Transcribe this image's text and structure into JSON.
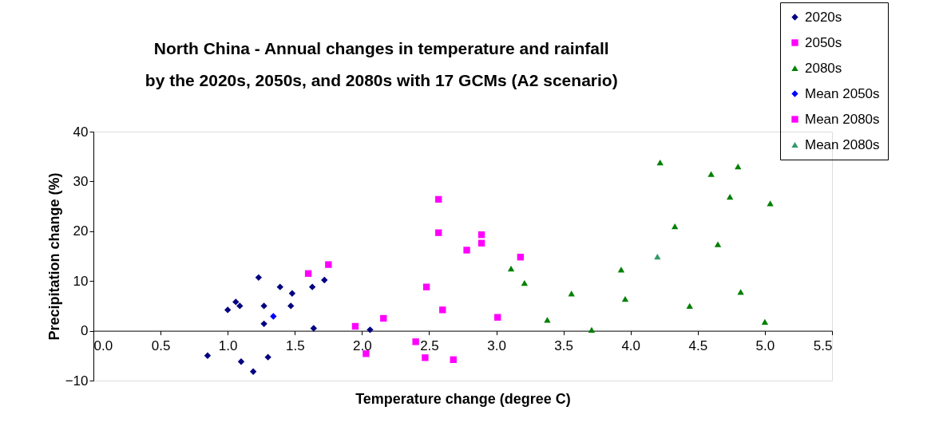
{
  "chart_data": {
    "type": "scatter",
    "title": "North China - Annual changes in temperature and rainfall by the 2020s, 2050s, and 2080s with 17 GCMs (A2 scenario)",
    "xlabel": "Temperature change (degree C)",
    "ylabel": "Precipitation change (%)",
    "xlim": [
      0,
      5.5
    ],
    "xticks": [
      {
        "value": 0,
        "label": "0.0"
      },
      0.5,
      {
        "value": 1,
        "label": "1.0"
      },
      1.5,
      {
        "value": 2,
        "label": "2.0"
      },
      2.5,
      {
        "value": 3,
        "label": "3.0"
      },
      3.5,
      {
        "value": 4,
        "label": "4.0"
      },
      4.5,
      {
        "value": 5,
        "label": "5.0"
      },
      5.5
    ],
    "ylim": [
      -10,
      40
    ],
    "yticks": [
      -10,
      0,
      10,
      20,
      30,
      40
    ],
    "grid": false,
    "legend": "top right",
    "series": [
      {
        "name": "2020s",
        "color": "#000080",
        "marker": "diamond",
        "x": [
          1.0,
          1.06,
          1.09,
          1.23,
          1.27,
          1.27,
          1.39,
          1.48,
          1.47,
          1.63,
          1.72,
          1.64,
          2.06,
          0.85,
          1.1,
          1.19,
          1.3
        ],
        "values": [
          4.2,
          5.8,
          5.0,
          10.7,
          5.0,
          1.4,
          8.8,
          7.5,
          5.0,
          8.8,
          10.2,
          0.5,
          0.2,
          -5.0,
          -6.2,
          -8.2,
          -5.3
        ]
      },
      {
        "name": "2050s",
        "color": "#ff00ff",
        "marker": "square",
        "x": [
          1.6,
          1.75,
          1.95,
          2.03,
          2.16,
          2.4,
          2.47,
          2.57,
          2.57,
          2.6,
          2.68,
          2.78,
          2.89,
          2.89,
          3.01,
          3.18
        ],
        "values": [
          11.5,
          13.3,
          0.9,
          -4.6,
          2.5,
          -2.2,
          -5.4,
          26.4,
          19.7,
          4.2,
          -5.8,
          16.2,
          19.3,
          17.6,
          2.7,
          14.8
        ]
      },
      {
        "name": "2080s",
        "color": "#008000",
        "marker": "triangle",
        "x": [
          4.22,
          4.6,
          4.8,
          4.74,
          5.04,
          4.33,
          4.65,
          3.93,
          3.96,
          3.56,
          3.38,
          3.71,
          4.44,
          4.82,
          5.0,
          3.11,
          3.21
        ],
        "values": [
          33.8,
          31.5,
          33.0,
          26.9,
          25.6,
          21.0,
          17.4,
          12.3,
          6.4,
          7.5,
          2.2,
          0.2,
          5.0,
          7.8,
          1.8,
          12.5,
          9.6
        ]
      },
      {
        "name": "Mean 2050s",
        "color": "#0000ff",
        "marker": "diamond",
        "x": [
          1.34
        ],
        "values": [
          2.9
        ]
      },
      {
        "name": "Mean 2080s",
        "color": "#ff00ff",
        "marker": "square",
        "x": [
          2.48
        ],
        "values": [
          8.8
        ]
      },
      {
        "name": "Mean 2080s",
        "color": "#339966",
        "marker": "triangle",
        "x": [
          4.2
        ],
        "values": [
          14.9
        ]
      }
    ]
  }
}
